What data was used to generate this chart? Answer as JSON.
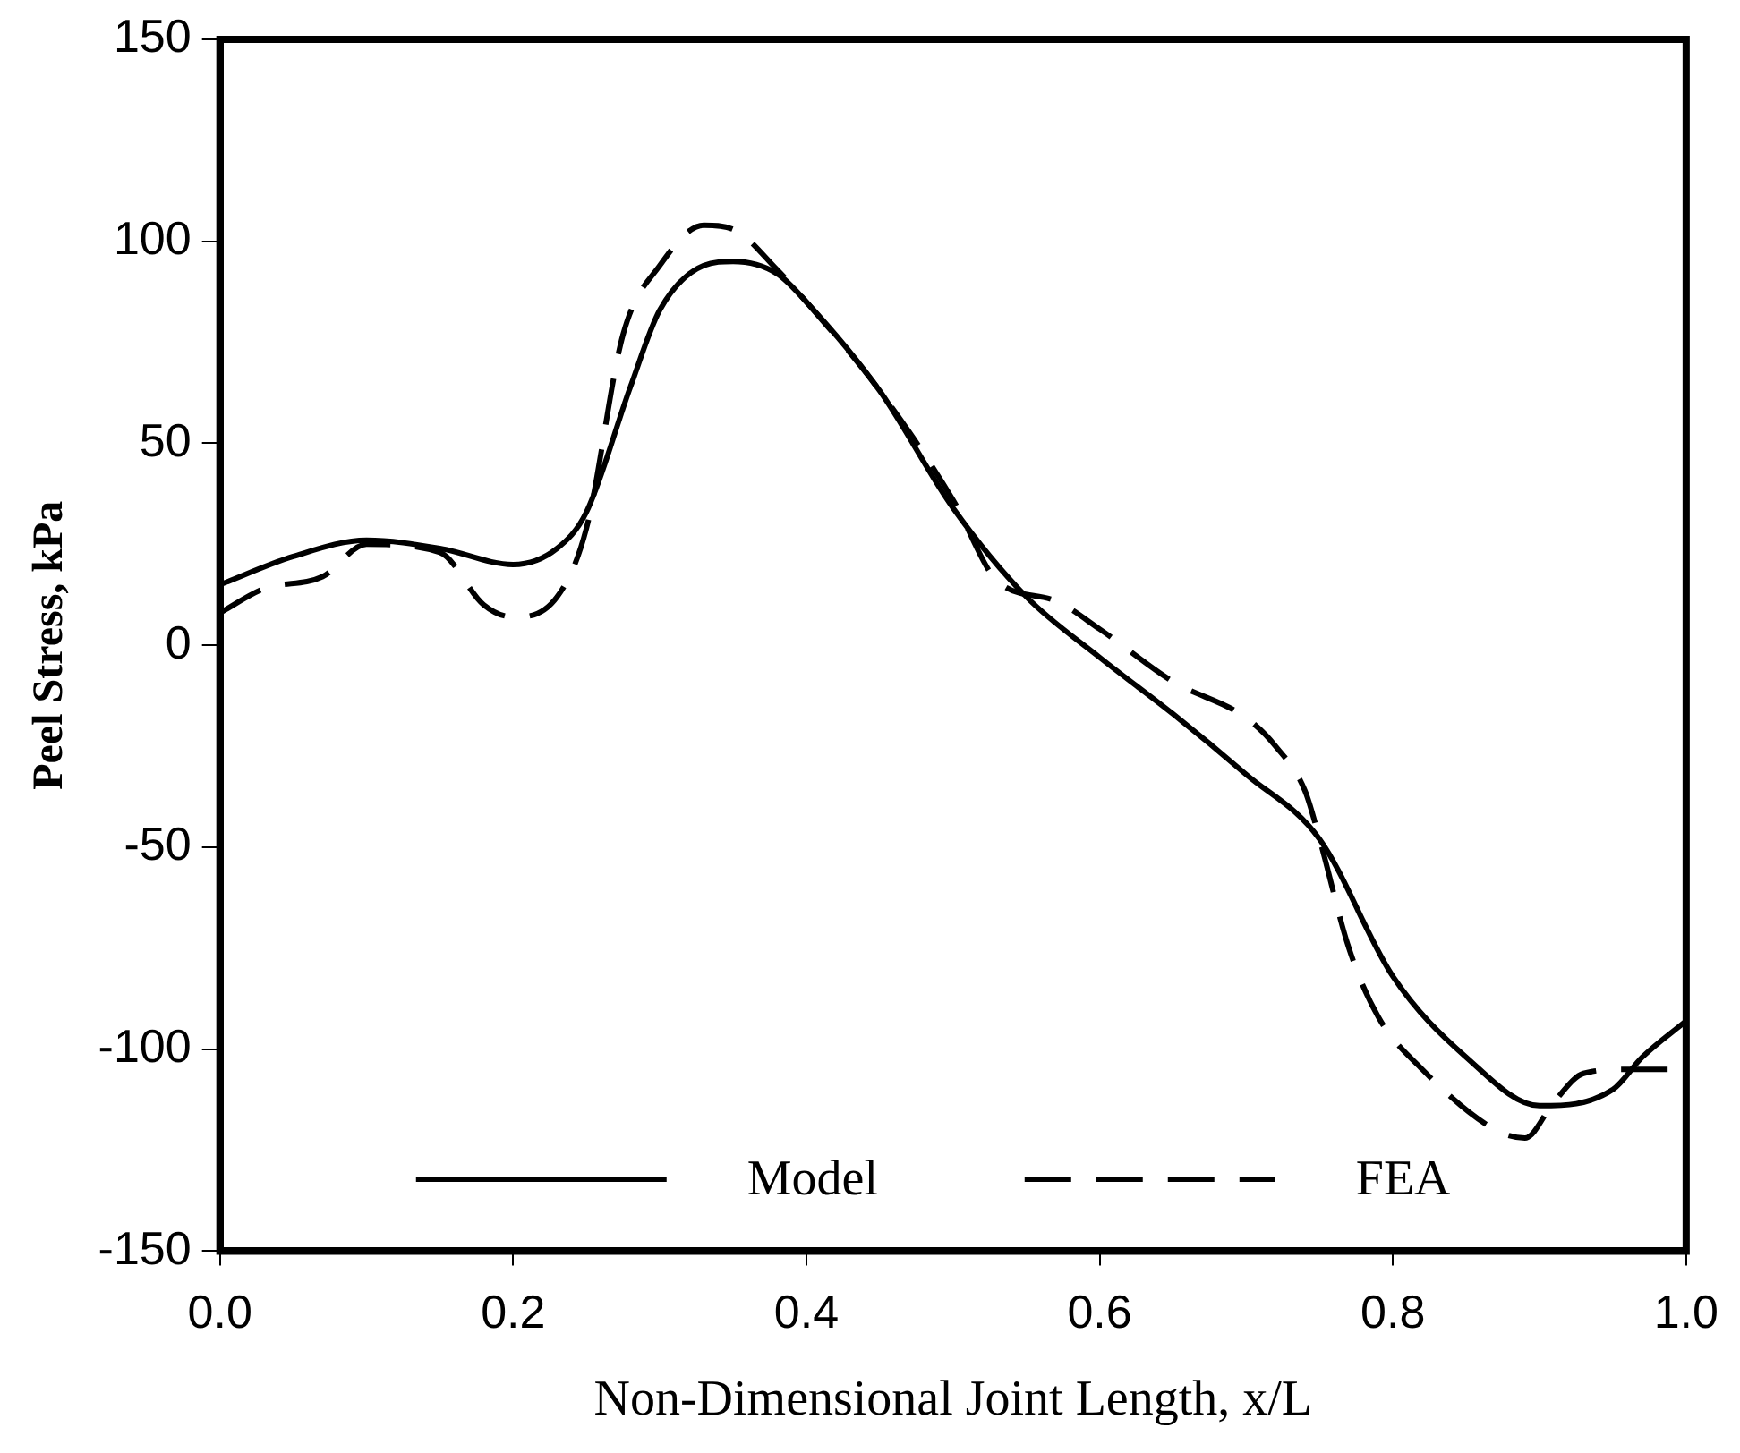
{
  "chart_data": {
    "type": "line",
    "xlabel": "Non-Dimensional Joint Length, x/L",
    "ylabel": "Peel Stress, kPa",
    "xlim": [
      0,
      1
    ],
    "xticks": [
      {
        "value": 0,
        "label": "0.0"
      },
      0.2,
      0.4,
      0.6,
      0.8,
      {
        "value": 1,
        "label": "1.0"
      }
    ],
    "ylim": [
      -150,
      150
    ],
    "yticks": [
      -150,
      -100,
      -50,
      0,
      50,
      100,
      150
    ],
    "grid": false,
    "legend": "bottom",
    "marker": "none",
    "series": [
      {
        "name": "Model",
        "color": "#000000",
        "line_style": "solid",
        "x": [
          0,
          0.05,
          0.1,
          0.15,
          0.2,
          0.23,
          0.25,
          0.28,
          0.3,
          0.33,
          0.35,
          0.38,
          0.4,
          0.45,
          0.5,
          0.55,
          0.6,
          0.65,
          0.7,
          0.75,
          0.8,
          0.85,
          0.9,
          0.95,
          0.97,
          1.0
        ],
        "values": [
          15,
          22,
          26,
          24,
          20,
          24,
          33,
          64,
          83,
          94,
          95,
          92,
          85,
          63,
          34,
          12,
          -3,
          -17,
          -32,
          -48,
          -82,
          -102,
          -114,
          -110,
          -102,
          -93
        ]
      },
      {
        "name": "FEA",
        "color": "#000000",
        "line_style": "dashed",
        "x": [
          0,
          0.03,
          0.07,
          0.1,
          0.15,
          0.18,
          0.2,
          0.23,
          0.25,
          0.275,
          0.3,
          0.33,
          0.35,
          0.38,
          0.4,
          0.45,
          0.5,
          0.53,
          0.57,
          0.6,
          0.65,
          0.7,
          0.72,
          0.74,
          0.75,
          0.77,
          0.79,
          0.82,
          0.87,
          0.89,
          0.91,
          0.93,
          0.96,
          1.0
        ],
        "values": [
          8,
          14,
          17,
          25,
          23,
          10,
          7,
          12,
          29,
          77,
          94,
          104,
          103,
          93,
          85,
          63,
          36,
          16,
          11,
          4,
          -9,
          -18,
          -25,
          -36,
          -48,
          -75,
          -92,
          -105,
          -120,
          -122,
          -113,
          -106,
          -105,
          -105
        ]
      }
    ]
  }
}
